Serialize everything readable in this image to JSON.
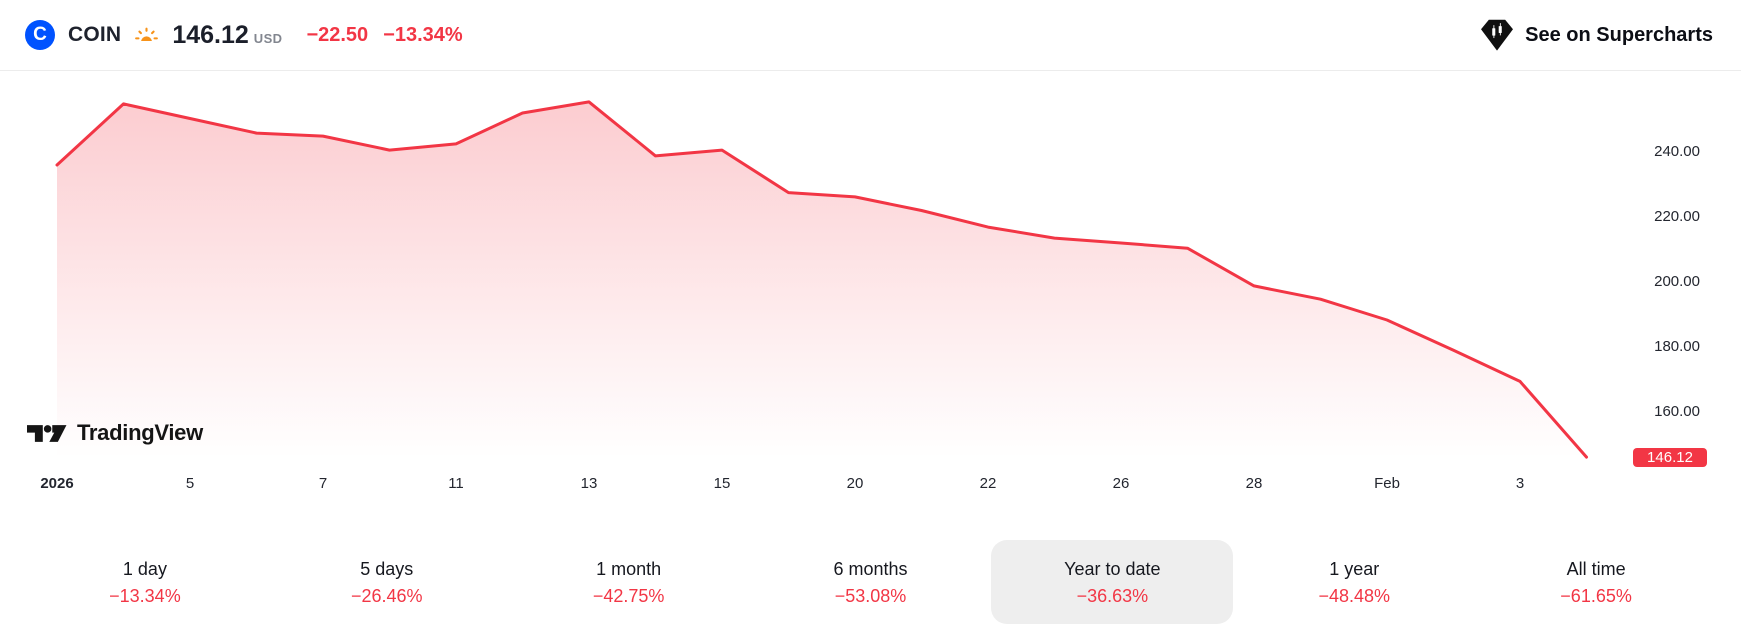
{
  "header": {
    "logo_letter": "C",
    "symbol": "COIN",
    "price": "146.12",
    "currency": "USD",
    "change_abs": "−22.50",
    "change_pct": "−13.34%",
    "supercharts_label": "See on Supercharts"
  },
  "watermark_text": "TradingView",
  "chart_data": {
    "type": "area",
    "title": "COIN year-to-date price",
    "x": [
      0,
      1,
      2,
      3,
      4,
      5,
      6,
      7,
      8,
      9,
      10,
      11,
      12,
      13,
      14,
      15,
      16,
      17,
      18,
      19,
      20,
      21,
      22,
      23
    ],
    "values": [
      236.0,
      254.8,
      250.3,
      245.8,
      244.9,
      240.6,
      242.5,
      252.0,
      255.4,
      238.8,
      240.6,
      227.5,
      226.2,
      222.0,
      216.9,
      213.5,
      212.0,
      210.4,
      198.8,
      194.7,
      188.3,
      179.0,
      169.4,
      146.12
    ],
    "last_value": 146.12,
    "last_value_label": "146.12",
    "x_ticks": [
      {
        "label": "2026",
        "bar": 0,
        "bold": true
      },
      {
        "label": "5",
        "bar": 2
      },
      {
        "label": "7",
        "bar": 4
      },
      {
        "label": "11",
        "bar": 6
      },
      {
        "label": "13",
        "bar": 8
      },
      {
        "label": "15",
        "bar": 10
      },
      {
        "label": "20",
        "bar": 12
      },
      {
        "label": "22",
        "bar": 14
      },
      {
        "label": "26",
        "bar": 16
      },
      {
        "label": "28",
        "bar": 18
      },
      {
        "label": "Feb",
        "bar": 20
      },
      {
        "label": "3",
        "bar": 22
      }
    ],
    "y_ticks": [
      {
        "label": "240.00",
        "value": 240
      },
      {
        "label": "220.00",
        "value": 220
      },
      {
        "label": "200.00",
        "value": 200
      },
      {
        "label": "180.00",
        "value": 180
      },
      {
        "label": "160.00",
        "value": 160
      }
    ],
    "ylim": [
      146,
      262
    ],
    "grid": false,
    "legend": false,
    "line_color": "#F23645"
  },
  "periods": [
    {
      "label": "1 day",
      "change": "−13.34%",
      "selected": false
    },
    {
      "label": "5 days",
      "change": "−26.46%",
      "selected": false
    },
    {
      "label": "1 month",
      "change": "−42.75%",
      "selected": false
    },
    {
      "label": "6 months",
      "change": "−53.08%",
      "selected": false
    },
    {
      "label": "Year to date",
      "change": "−36.63%",
      "selected": true
    },
    {
      "label": "1 year",
      "change": "−48.48%",
      "selected": false
    },
    {
      "label": "All time",
      "change": "−61.65%",
      "selected": false
    }
  ],
  "colors": {
    "accent_red": "#F23645",
    "coinbase_blue": "#0052FF",
    "sun_orange": "#F7931A",
    "selected_pill_bg": "#EEEEEE"
  }
}
